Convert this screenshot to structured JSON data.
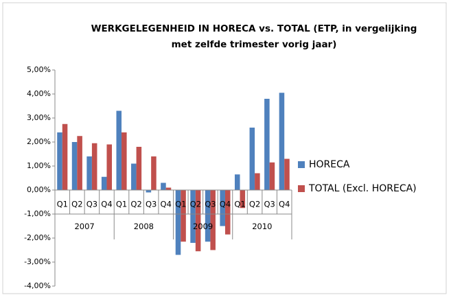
{
  "chart_data": {
    "type": "bar",
    "title": [
      "WERKGELEGENHEID IN HORECA vs. TOTAL (ETP, in vergelijking",
      "met zelfde trimester vorig jaar)"
    ],
    "categories": [
      "Q1",
      "Q2",
      "Q3",
      "Q4",
      "Q1",
      "Q2",
      "Q3",
      "Q4",
      "Q1",
      "Q2",
      "Q3",
      "Q4",
      "Q1",
      "Q2",
      "Q3",
      "Q4"
    ],
    "years": [
      "2007",
      "2008",
      "2009",
      "2010"
    ],
    "series": [
      {
        "name": "HORECA",
        "color": "#4f81bd",
        "values": [
          2.4,
          2.0,
          1.4,
          0.55,
          3.3,
          1.1,
          -0.1,
          0.3,
          -2.7,
          -2.2,
          -2.15,
          -1.5,
          0.65,
          2.6,
          3.8,
          4.05
        ]
      },
      {
        "name": "TOTAL (Excl. HORECA)",
        "color": "#c0504d",
        "values": [
          2.75,
          2.25,
          1.95,
          1.9,
          2.4,
          1.8,
          1.4,
          0.1,
          -2.15,
          -2.55,
          -2.5,
          -1.85,
          -0.75,
          0.7,
          1.15,
          1.3
        ]
      }
    ],
    "ylim": [
      -4,
      5
    ],
    "yticks": [
      {
        "value": -4,
        "label": "-4,00%"
      },
      {
        "value": -3,
        "label": "-3,00%"
      },
      {
        "value": -2,
        "label": "-2,00%"
      },
      {
        "value": -1,
        "label": "-1,00%"
      },
      {
        "value": 0,
        "label": "0,00%"
      },
      {
        "value": 1,
        "label": "1,00%"
      },
      {
        "value": 2,
        "label": "2,00%"
      },
      {
        "value": 3,
        "label": "3,00%"
      },
      {
        "value": 4,
        "label": "4,00%"
      },
      {
        "value": 5,
        "label": "5,00%"
      }
    ],
    "legend": "right"
  }
}
